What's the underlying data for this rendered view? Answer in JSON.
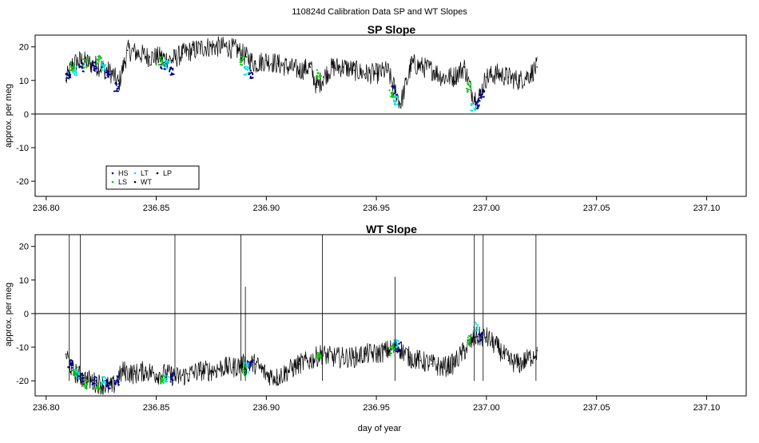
{
  "figure": {
    "suptitle": "110824d   Calibration Data SP and WT Slopes"
  },
  "chart_data": [
    {
      "type": "line",
      "title": "SP Slope",
      "xlabel": "",
      "ylabel": "approx. per meg",
      "xlim": [
        236.795,
        237.118
      ],
      "ylim": [
        -24.5,
        23.5
      ],
      "xticks": [
        "236.80",
        "236.85",
        "236.90",
        "236.95",
        "237.00",
        "237.05",
        "237.10"
      ],
      "xtick_values": [
        236.8,
        236.85,
        236.9,
        236.95,
        237.0,
        237.05,
        237.1
      ],
      "yticks": [
        "-20",
        "-10",
        "0",
        "10",
        "20"
      ],
      "ytick_values": [
        -20,
        -10,
        0,
        10,
        20
      ],
      "hline": 0,
      "grid": false,
      "legend_position": "bottom-left",
      "series": [
        {
          "name": "WT",
          "color": "#000000",
          "x": [
            236.809,
            236.812,
            236.816,
            236.82,
            236.825,
            236.83,
            236.833,
            236.837,
            236.842,
            236.847,
            236.852,
            236.857,
            236.862,
            236.867,
            236.872,
            236.877,
            236.882,
            236.887,
            236.891,
            236.895,
            236.9,
            236.905,
            236.91,
            236.915,
            236.92,
            236.923,
            236.926,
            236.93,
            236.935,
            236.94,
            236.945,
            236.95,
            236.955,
            236.958,
            236.961,
            236.966,
            236.971,
            236.976,
            236.98,
            236.985,
            236.99,
            236.993,
            236.996,
            237.0,
            237.005,
            237.01,
            237.015,
            237.02,
            237.023
          ],
          "y": [
            10,
            15,
            16,
            15,
            14,
            12,
            9,
            19,
            18,
            17,
            17,
            16,
            18,
            19,
            20,
            20,
            20,
            19,
            17,
            15,
            16,
            15,
            14,
            13,
            14,
            8,
            11,
            14,
            14,
            13,
            12,
            12,
            13,
            8,
            3,
            15,
            14,
            13,
            11,
            11,
            14,
            7,
            4,
            11,
            12,
            11,
            10,
            12,
            14
          ]
        },
        {
          "name": "HS",
          "color": "#00008b",
          "x": [
            236.81,
            236.816,
            236.822,
            236.828,
            236.832,
            236.853,
            236.857,
            236.893,
            236.958,
            236.996,
            236.998
          ],
          "y": [
            12,
            14,
            14,
            12,
            8,
            14,
            13,
            12,
            7,
            3,
            6
          ]
        },
        {
          "name": "LS",
          "color": "#00cc00",
          "x": [
            236.812,
            236.818,
            236.824,
            236.852,
            236.889,
            236.924,
            236.957,
            236.992
          ],
          "y": [
            14,
            15,
            16,
            16,
            16,
            12,
            6,
            8
          ]
        },
        {
          "name": "LT",
          "color": "#00e5e5",
          "x": [
            236.813,
            236.826,
            236.855,
            236.891,
            236.959,
            236.994
          ],
          "y": [
            13,
            14,
            15,
            13,
            4,
            2
          ]
        },
        {
          "name": "LP",
          "color": "#000000",
          "x": [],
          "y": []
        }
      ]
    },
    {
      "type": "line",
      "title": "WT Slope",
      "xlabel": "day of year",
      "ylabel": "approx. per meg",
      "xlim": [
        236.795,
        237.118
      ],
      "ylim": [
        -24.5,
        23.5
      ],
      "xticks": [
        "236.80",
        "236.85",
        "236.90",
        "236.95",
        "237.00",
        "237.05",
        "237.10"
      ],
      "xtick_values": [
        236.8,
        236.85,
        236.9,
        236.95,
        237.0,
        237.05,
        237.1
      ],
      "yticks": [
        "-20",
        "-10",
        "0",
        "10",
        "20"
      ],
      "ytick_values": [
        -20,
        -10,
        0,
        10,
        20
      ],
      "hline": 0,
      "grid": false,
      "series": [
        {
          "name": "WT",
          "color": "#000000",
          "x": [
            236.809,
            236.812,
            236.816,
            236.82,
            236.825,
            236.83,
            236.835,
            236.84,
            236.845,
            236.85,
            236.855,
            236.86,
            236.865,
            236.87,
            236.875,
            236.88,
            236.885,
            236.89,
            236.895,
            236.9,
            236.905,
            236.91,
            236.915,
            236.92,
            236.925,
            236.93,
            236.935,
            236.94,
            236.945,
            236.95,
            236.955,
            236.96,
            236.965,
            236.97,
            236.975,
            236.98,
            236.985,
            236.99,
            236.995,
            237.0,
            237.005,
            237.01,
            237.015,
            237.02,
            237.023
          ],
          "y": [
            -12,
            -17,
            -19,
            -20,
            -21,
            -22,
            -17,
            -18,
            -17,
            -18,
            -18,
            -19,
            -18,
            -17,
            -17,
            -16,
            -16,
            -15,
            -15,
            -18,
            -19,
            -17,
            -15,
            -14,
            -12,
            -13,
            -13,
            -13,
            -12,
            -12,
            -11,
            -10,
            -13,
            -14,
            -15,
            -16,
            -15,
            -11,
            -7,
            -7,
            -10,
            -14,
            -15,
            -13,
            -11
          ]
        },
        {
          "name": "HS",
          "color": "#00008b",
          "x": [
            236.811,
            236.816,
            236.822,
            236.828,
            236.832,
            236.857,
            236.893,
            236.96,
            236.997
          ],
          "y": [
            -15,
            -19,
            -20,
            -21,
            -20,
            -19,
            -15,
            -10,
            -7
          ]
        },
        {
          "name": "LS",
          "color": "#00cc00",
          "x": [
            236.813,
            236.818,
            236.824,
            236.853,
            236.89,
            236.924,
            236.957,
            236.992
          ],
          "y": [
            -17,
            -21,
            -22,
            -20,
            -17,
            -12,
            -11,
            -8
          ]
        },
        {
          "name": "LT",
          "color": "#00e5e5",
          "x": [
            236.814,
            236.826,
            236.855,
            236.891,
            236.959,
            236.995
          ],
          "y": [
            -18,
            -20,
            -19,
            -16,
            -9,
            -4
          ]
        }
      ],
      "spikes": [
        {
          "x": 236.8105,
          "y_top": 23.5
        },
        {
          "x": 236.8155,
          "y_top": 23.5
        },
        {
          "x": 236.8585,
          "y_top": 23.5
        },
        {
          "x": 236.8885,
          "y_top": 23.5
        },
        {
          "x": 236.8905,
          "y_top": 8
        },
        {
          "x": 236.9255,
          "y_top": 23.5
        },
        {
          "x": 236.9585,
          "y_top": 11
        },
        {
          "x": 236.9945,
          "y_top": 23.5
        },
        {
          "x": 236.9985,
          "y_top": 23.5
        },
        {
          "x": 237.0225,
          "y_top": 23.5
        }
      ]
    }
  ],
  "legend": {
    "entries": [
      {
        "label": "HS",
        "color": "#00008b"
      },
      {
        "label": "LT",
        "color": "#00e5e5"
      },
      {
        "label": "LP",
        "color": "#000000"
      },
      {
        "label": "LS",
        "color": "#00cc00"
      },
      {
        "label": "WT",
        "color": "#000000"
      }
    ]
  }
}
